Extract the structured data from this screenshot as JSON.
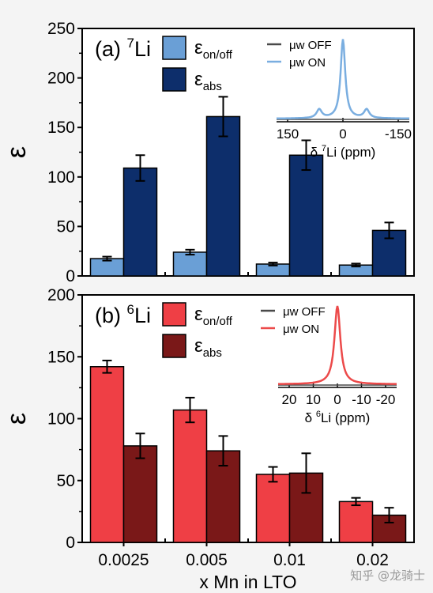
{
  "watermark": "知乎 @龙骑士",
  "xlabel": "x Mn in LTO",
  "colors": {
    "a_onoff": "#6a9fd6",
    "a_abs": "#0d2e6b",
    "b_onoff": "#ef3f45",
    "b_abs": "#7a1818",
    "off_line": "#4a4a4a",
    "on_line_a": "#7aaee0",
    "on_line_b": "#ec4a4a"
  },
  "panels": [
    {
      "label": "(a)",
      "nucleus_mass": "7",
      "nucleus": "Li",
      "ylabel": "ε",
      "legend": [
        {
          "sym": "ε",
          "sub": "on/off"
        },
        {
          "sym": "ε",
          "sub": "abs"
        }
      ],
      "inset": {
        "series": [
          "μw OFF",
          "μw ON"
        ],
        "ticks": [
          "150",
          "0",
          "-150"
        ],
        "xlabel_prefix": "δ",
        "xlabel_sup": "7",
        "xlabel_rest": "Li (ppm)"
      }
    },
    {
      "label": "(b)",
      "nucleus_mass": "6",
      "nucleus": "Li",
      "ylabel": "ε",
      "legend": [
        {
          "sym": "ε",
          "sub": "on/off"
        },
        {
          "sym": "ε",
          "sub": "abs"
        }
      ],
      "inset": {
        "series": [
          "μw OFF",
          "μw ON"
        ],
        "ticks": [
          "20",
          "10",
          "0",
          "-10",
          "-20"
        ],
        "xlabel_prefix": "δ",
        "xlabel_sup": "6",
        "xlabel_rest": "Li (ppm)"
      }
    }
  ],
  "chart_data": [
    {
      "type": "bar",
      "categories": [
        "0.0025",
        "0.005",
        "0.01",
        "0.02"
      ],
      "ylim": [
        0,
        250
      ],
      "yticks": [
        0,
        50,
        100,
        150,
        200,
        250
      ],
      "series": [
        {
          "name": "ε on/off",
          "values": [
            17.5,
            24,
            12,
            11
          ],
          "errors": [
            2,
            2.5,
            1.5,
            1.5
          ]
        },
        {
          "name": "ε abs",
          "values": [
            109,
            161,
            122,
            46
          ],
          "errors": [
            13,
            20,
            15,
            8
          ]
        }
      ]
    },
    {
      "type": "bar",
      "categories": [
        "0.0025",
        "0.005",
        "0.01",
        "0.02"
      ],
      "ylim": [
        0,
        200
      ],
      "yticks": [
        0,
        50,
        100,
        150,
        200
      ],
      "series": [
        {
          "name": "ε on/off",
          "values": [
            142,
            107,
            55,
            33
          ],
          "errors": [
            5,
            10,
            6,
            3
          ]
        },
        {
          "name": "ε abs",
          "values": [
            78,
            74,
            56,
            22
          ],
          "errors": [
            10,
            12,
            16,
            6
          ]
        }
      ]
    }
  ]
}
